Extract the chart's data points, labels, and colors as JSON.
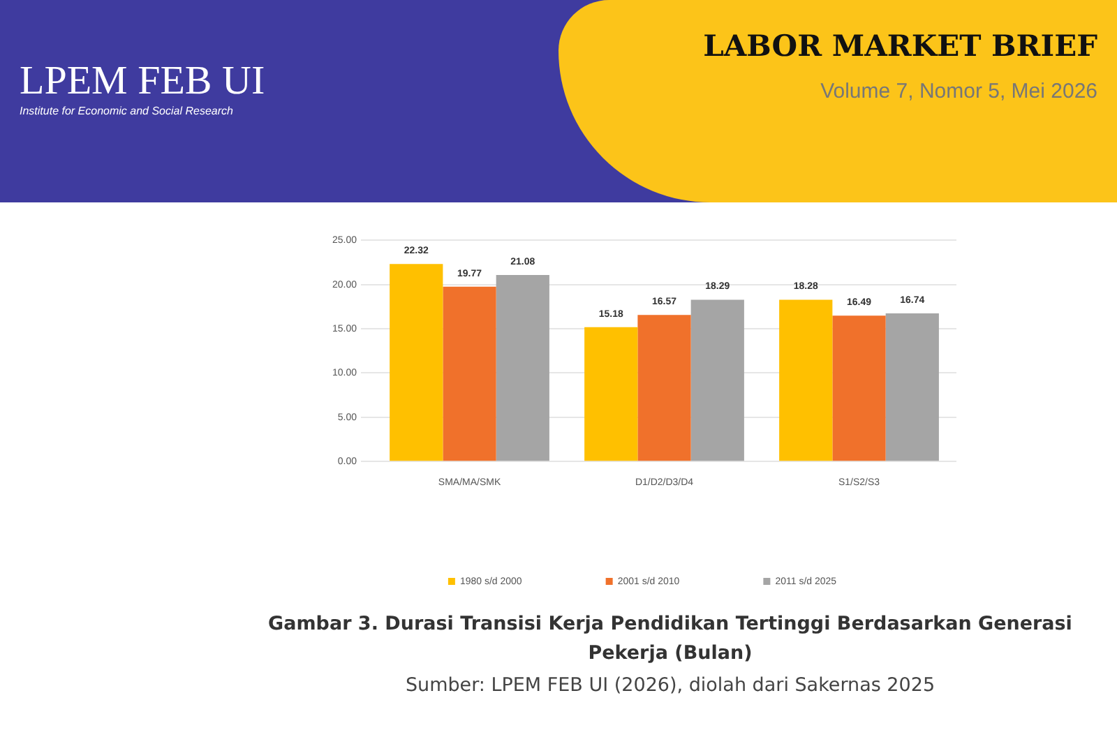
{
  "chart_data": {
    "type": "bar",
    "title": "Gambar 3. Durasi Transisi Kerja Pendidikan Tertinggi Berdasarkan Generasi Pekerja (Bulan)",
    "annotations": [
      "LPEM FEB UI",
      "Institute for Economic and Social Research",
      "LABOR MARKET BRIEF",
      "Volume 7, Nomor 5, Mei 2026",
      "Sumber: LPEM FEB UI (2026), diolah dari Sakernas 2025"
    ],
    "categories": [
      "SMA/MA/SMK",
      "D1/D2/D3/D4",
      "S1/S2/S3"
    ],
    "series": [
      {
        "name": "1980 s/d 2000",
        "color": "#ffc000",
        "values": [
          22.32,
          15.18,
          18.28
        ]
      },
      {
        "name": "2001 s/d 2010",
        "color": "#f0712b",
        "values": [
          19.77,
          16.57,
          16.49
        ]
      },
      {
        "name": "2011 s/d 2025",
        "color": "#a5a5a5",
        "values": [
          21.08,
          18.29,
          16.74
        ]
      }
    ],
    "ylim": [
      0,
      25
    ],
    "yticks": [
      {
        "value": 0,
        "label": "0.00"
      },
      {
        "value": 5,
        "label": "5.00"
      },
      {
        "value": 10,
        "label": "10.00"
      },
      {
        "value": 15,
        "label": "15.00"
      },
      {
        "value": 20,
        "label": "20.00"
      },
      {
        "value": 25,
        "label": "25.00"
      }
    ],
    "grid": "y",
    "legend": "bottom",
    "data_labels": true
  }
}
